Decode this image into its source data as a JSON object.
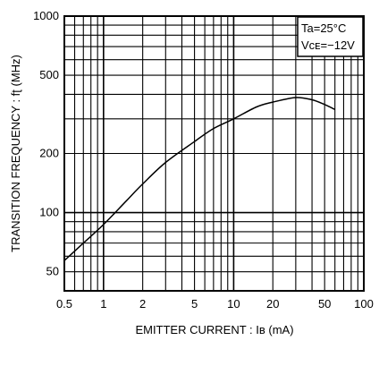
{
  "chart_data": {
    "type": "line",
    "title": "",
    "xlabel": "EMITTER CURRENT : Iʙ (mA)",
    "ylabel": "TRANSITION FREQUENCY : fʈ (MHz)",
    "x_scale": "log",
    "y_scale": "log",
    "xlim": [
      0.5,
      100
    ],
    "ylim": [
      40,
      1000
    ],
    "grid": true,
    "x_ticks": [
      {
        "value": 0.5,
        "label": "0.5"
      },
      {
        "value": 1,
        "label": "1"
      },
      {
        "value": 2,
        "label": "2"
      },
      {
        "value": 5,
        "label": "5"
      },
      {
        "value": 10,
        "label": "10"
      },
      {
        "value": 20,
        "label": "20"
      },
      {
        "value": 50,
        "label": "50"
      },
      {
        "value": 100,
        "label": "100"
      }
    ],
    "y_ticks": [
      {
        "value": 50,
        "label": "50"
      },
      {
        "value": 100,
        "label": "100"
      },
      {
        "value": 200,
        "label": "200"
      },
      {
        "value": 500,
        "label": "500"
      },
      {
        "value": 1000,
        "label": "1000"
      }
    ],
    "legend": {
      "placement": "top-right",
      "lines": [
        "Ta=25°C",
        "Vᴄᴇ=−12V"
      ]
    },
    "series": [
      {
        "x": [
          0.5,
          0.7,
          1,
          1.5,
          2,
          3,
          5,
          7,
          10,
          15,
          20,
          30,
          40,
          50,
          60
        ],
        "y": [
          57,
          70,
          87,
          115,
          140,
          180,
          230,
          268,
          300,
          345,
          365,
          385,
          375,
          355,
          335
        ]
      }
    ]
  }
}
